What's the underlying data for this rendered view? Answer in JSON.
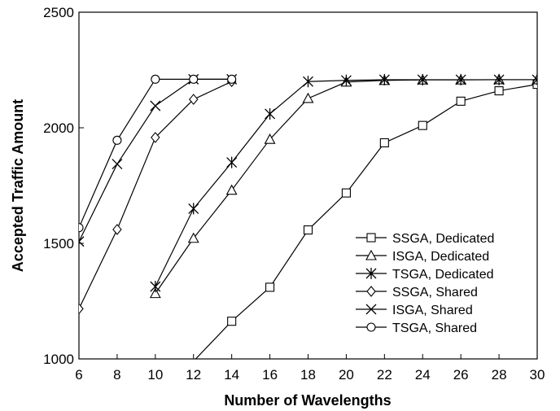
{
  "chart_data": {
    "type": "line",
    "title": "",
    "xlabel": "Number of Wavelengths",
    "ylabel": "Accepted Traffic Amount",
    "xlim": [
      6,
      30
    ],
    "ylim": [
      1000,
      2500
    ],
    "xticks": [
      6,
      8,
      10,
      12,
      14,
      16,
      18,
      20,
      22,
      24,
      26,
      28,
      30
    ],
    "yticks": [
      1000,
      1500,
      2000,
      2500
    ],
    "grid": false,
    "legend_position": "lower-right",
    "series": [
      {
        "name": "SSGA, Dedicated",
        "marker": "square",
        "x": [
          12,
          14,
          16,
          18,
          20,
          22,
          24,
          26,
          28,
          30
        ],
        "y": [
          990,
          1163,
          1310,
          1558,
          1718,
          1935,
          2010,
          2115,
          2160,
          2188
        ]
      },
      {
        "name": "ISGA, Dedicated",
        "marker": "triangle",
        "x": [
          10,
          12,
          14,
          16,
          18,
          20,
          22,
          24,
          26,
          28,
          30
        ],
        "y": [
          1283,
          1522,
          1730,
          1950,
          2127,
          2198,
          2205,
          2207,
          2207,
          2208,
          2208
        ]
      },
      {
        "name": "TSGA, Dedicated",
        "marker": "star",
        "x": [
          10,
          12,
          14,
          16,
          18,
          20,
          22,
          24,
          26,
          28,
          30
        ],
        "y": [
          1313,
          1650,
          1850,
          2060,
          2200,
          2205,
          2208,
          2208,
          2208,
          2208,
          2208
        ]
      },
      {
        "name": "SSGA, Shared",
        "marker": "diamond",
        "x": [
          6,
          8,
          10,
          12,
          14
        ],
        "y": [
          1217,
          1560,
          1958,
          2123,
          2200
        ]
      },
      {
        "name": "ISGA, Shared",
        "marker": "x",
        "x": [
          6,
          8,
          10,
          12,
          14
        ],
        "y": [
          1508,
          1843,
          2095,
          2210,
          2210
        ]
      },
      {
        "name": "TSGA, Shared",
        "marker": "circle",
        "x": [
          6,
          8,
          10,
          12,
          14
        ],
        "y": [
          1568,
          1946,
          2210,
          2210,
          2210
        ]
      }
    ]
  }
}
